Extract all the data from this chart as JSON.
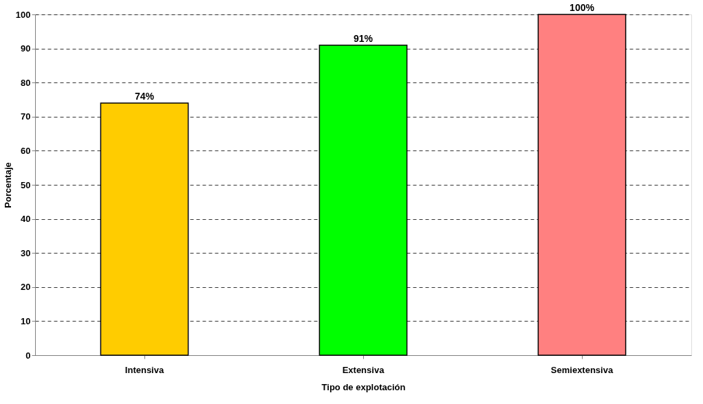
{
  "chart_data": {
    "type": "bar",
    "xlabel": "Tipo de explotación",
    "ylabel": "Porcentaje",
    "categories": [
      "Intensiva",
      "Extensiva",
      "Semiextensiva"
    ],
    "values": [
      74,
      91,
      100
    ],
    "colors": [
      "#ffcc00",
      "#00ff00",
      "#ff8080"
    ],
    "value_labels": [
      "74%",
      "91%",
      "100%"
    ],
    "ylim": [
      0,
      100
    ],
    "yticks": [
      0,
      10,
      20,
      30,
      40,
      50,
      60,
      70,
      80,
      90,
      100
    ],
    "grid": "y"
  }
}
